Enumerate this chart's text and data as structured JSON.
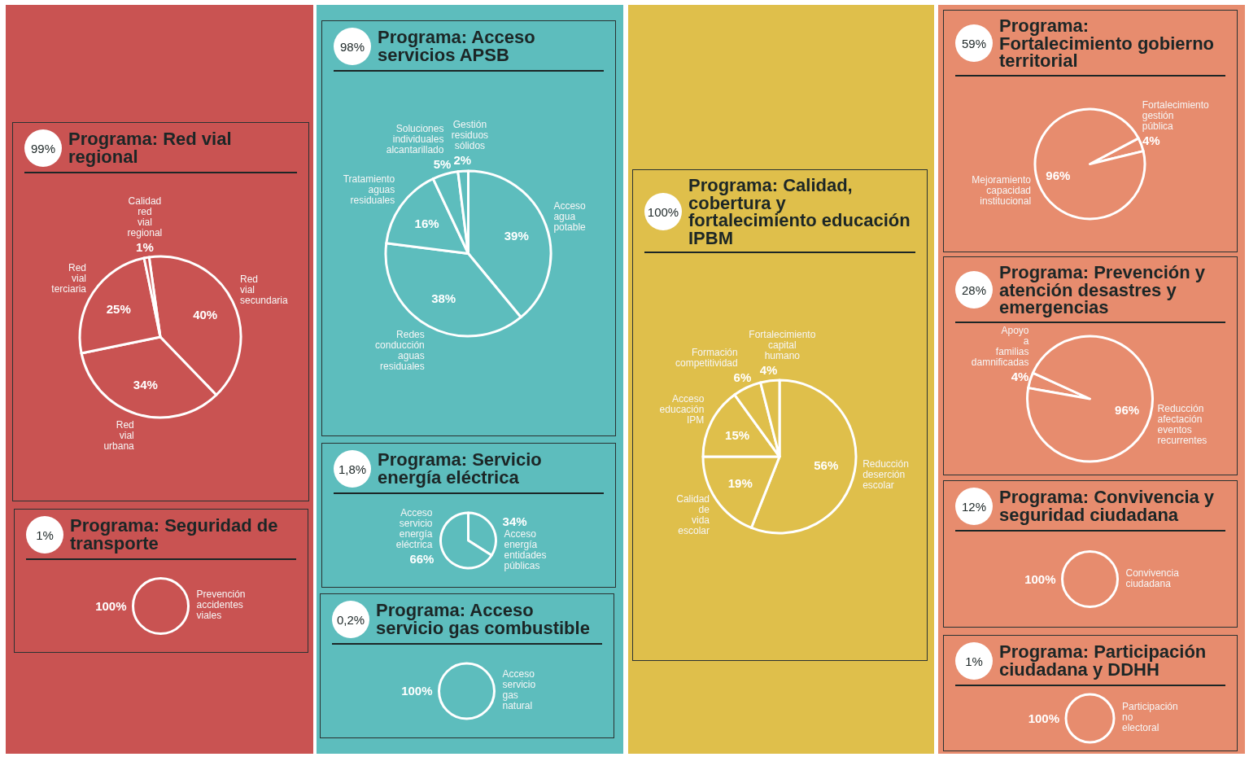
{
  "chart_data": [
    {
      "type": "pie",
      "title": "Programa: Red vial regional",
      "annotations": [
        "99%"
      ],
      "categories": [
        "Red vial secundaria",
        "Red vial urbana",
        "Red vial terciaria",
        "Calidad red vial regional"
      ],
      "values": [
        40,
        34,
        25,
        1
      ],
      "value_labels": [
        "40%",
        "34%",
        "25%",
        "1%"
      ],
      "colors": [
        "#c95352",
        "#c95352",
        "#c95352",
        "#c95352"
      ]
    },
    {
      "type": "pie",
      "title": "Programa: Seguridad de transporte",
      "annotations": [
        "1%"
      ],
      "categories": [
        "Prevención accidentes viales"
      ],
      "values": [
        100
      ],
      "value_labels": [
        "100%"
      ],
      "colors": [
        "#c95352"
      ]
    },
    {
      "type": "pie",
      "title": "Programa: Acceso servicios APSB",
      "annotations": [
        "98%"
      ],
      "categories": [
        "Acceso agua potable",
        "Redes conducción aguas residuales",
        "Tratamiento aguas residuales",
        "Soluciones individuales alcantarillado",
        "Gestión residuos sólidos"
      ],
      "values": [
        39,
        38,
        16,
        5,
        2
      ],
      "value_labels": [
        "39%",
        "38%",
        "16%",
        "5%",
        "2%"
      ],
      "colors": [
        "#5dbdbd",
        "#5dbdbd",
        "#5dbdbd",
        "#5dbdbd",
        "#5dbdbd"
      ]
    },
    {
      "type": "pie",
      "title": "Programa: Servicio energía eléctrica",
      "annotations": [
        "1,8%"
      ],
      "categories": [
        "Acceso energía entidades públicas",
        "Acceso servicio energía eléctrica"
      ],
      "values": [
        34,
        66
      ],
      "value_labels": [
        "34%",
        "66%"
      ],
      "colors": [
        "#5dbdbd",
        "#5dbdbd"
      ]
    },
    {
      "type": "pie",
      "title": "Programa: Acceso servicio gas combustible",
      "annotations": [
        "0,2%"
      ],
      "categories": [
        "Acceso servicio gas natural"
      ],
      "values": [
        100
      ],
      "value_labels": [
        "100%"
      ],
      "colors": [
        "#5dbdbd"
      ]
    },
    {
      "type": "pie",
      "title": "Programa: Calidad, cobertura y fortalecimiento educación IPBM",
      "annotations": [
        "100%"
      ],
      "categories": [
        "Reducción deserción escolar",
        "Calidad de vida escolar",
        "Acceso educación IPM",
        "Formación competitividad",
        "Fortalecimiento capital humano"
      ],
      "values": [
        56,
        19,
        15,
        6,
        4
      ],
      "value_labels": [
        "56%",
        "19%",
        "15%",
        "6%",
        "4%"
      ],
      "colors": [
        "#dfbf4b",
        "#dfbf4b",
        "#dfbf4b",
        "#dfbf4b",
        "#dfbf4b"
      ]
    },
    {
      "type": "pie",
      "title": "Programa: Fortalecimiento gobierno territorial",
      "annotations": [
        "59%"
      ],
      "categories": [
        "Fortalecimiento gestión pública",
        "Mejoramiento capacidad institucional"
      ],
      "values": [
        4,
        96
      ],
      "value_labels": [
        "4%",
        "96%"
      ],
      "colors": [
        "#e78c6e",
        "#e78c6e"
      ]
    },
    {
      "type": "pie",
      "title": "Programa: Prevención y atención desastres y emergencias",
      "annotations": [
        "28%"
      ],
      "categories": [
        "Apoyo a familias damnificadas",
        "Reducción afectación eventos recurrentes"
      ],
      "values": [
        4,
        96
      ],
      "value_labels": [
        "4%",
        "96%"
      ],
      "colors": [
        "#e78c6e",
        "#e78c6e"
      ]
    },
    {
      "type": "pie",
      "title": "Programa: Convivencia y seguridad ciudadana",
      "annotations": [
        "12%"
      ],
      "categories": [
        "Convivencia ciudadana"
      ],
      "values": [
        100
      ],
      "value_labels": [
        "100%"
      ],
      "colors": [
        "#e78c6e"
      ]
    },
    {
      "type": "pie",
      "title": "Programa: Participación ciudadana y DDHH",
      "annotations": [
        "1%"
      ],
      "categories": [
        "Participación no electoral"
      ],
      "values": [
        100
      ],
      "value_labels": [
        "100%"
      ],
      "colors": [
        "#e78c6e"
      ]
    }
  ]
}
